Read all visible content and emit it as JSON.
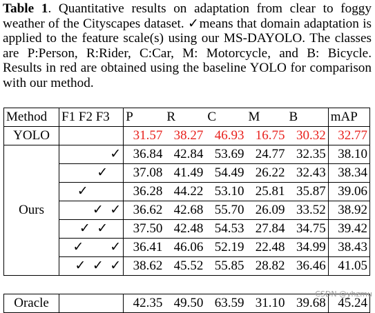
{
  "caption": {
    "label": "Table 1",
    "text": ". Quantitative results on adaptation from clear to foggy weather of the Cityscapes dataset. ✓means that domain adaptation is applied to the feature scale(s) using our MS-DAYOLO. The classes are P:Person, R:Rider, C:Car, M: Motorcycle, and B: Bicycle. Results in red are obtained using the baseline YOLO for comparison with our method."
  },
  "table": {
    "headers": [
      "Method",
      "F1 F2 F3",
      "P",
      "R",
      "C",
      "M",
      "B",
      "mAP"
    ],
    "yolo": {
      "method": "YOLO",
      "values": [
        "31.57",
        "38.27",
        "46.93",
        "16.75",
        "30.32",
        "32.77"
      ]
    },
    "ours": {
      "method": "Ours",
      "rows": [
        {
          "checks": "✓",
          "values": [
            "36.84",
            "42.84",
            "53.69",
            "24.77",
            "32.35",
            "38.10"
          ]
        },
        {
          "checks": "✓    ",
          "values": [
            "37.08",
            "41.49",
            "54.49",
            "26.22",
            "32.43",
            "38.34"
          ]
        },
        {
          "checks": "✓          ",
          "values": [
            "36.28",
            "44.22",
            "53.10",
            "25.81",
            "35.87",
            "39.06"
          ]
        },
        {
          "checks": "✓  ✓",
          "values": [
            "36.62",
            "42.68",
            "55.70",
            "26.09",
            "33.52",
            "38.92"
          ]
        },
        {
          "checks": "✓  ✓    ",
          "values": [
            "37.50",
            "42.48",
            "54.53",
            "27.84",
            "34.75",
            "39.42"
          ]
        },
        {
          "checks": "✓        ✓",
          "values": [
            "36.41",
            "46.06",
            "52.19",
            "22.48",
            "34.99",
            "38.43"
          ]
        },
        {
          "checks": "✓  ✓  ✓",
          "values": [
            "38.62",
            "45.52",
            "55.85",
            "28.82",
            "36.46",
            "41.05"
          ]
        }
      ]
    },
    "oracle": {
      "method": "Oracle",
      "values": [
        "42.35",
        "49.50",
        "63.59",
        "31.10",
        "39.68",
        "45.24"
      ]
    }
  },
  "watermark": "CSDN @yhzmu",
  "colors": {
    "baseline_red": "#e8211d"
  }
}
